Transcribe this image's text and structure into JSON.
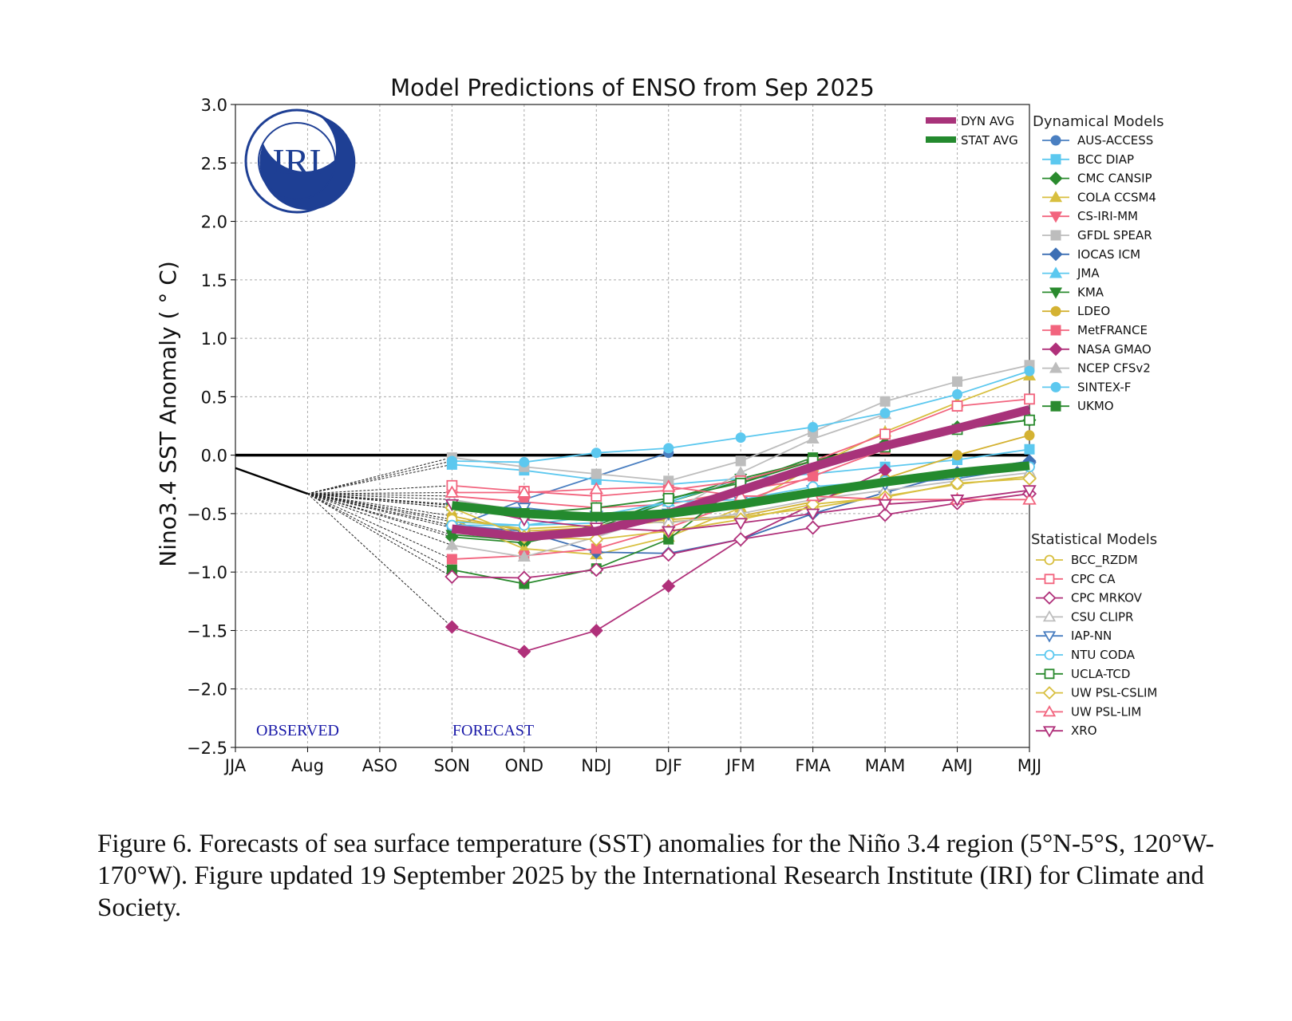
{
  "chart_data": {
    "type": "line",
    "title": "Model Predictions of ENSO from Sep 2025",
    "ylabel": "Nino3.4 SST Anomaly ( ° C)",
    "xlabel": "",
    "categories": [
      "JJA",
      "Aug",
      "ASO",
      "SON",
      "OND",
      "NDJ",
      "DJF",
      "JFM",
      "FMA",
      "MAM",
      "AMJ",
      "MJJ"
    ],
    "ylim": [
      -2.5,
      3.0
    ],
    "yticks": [
      "3.0",
      "2.5",
      "2.0",
      "1.5",
      "1.0",
      "0.5",
      "0.0",
      "−0.5",
      "−1.0",
      "−1.5",
      "−2.0",
      "−2.5"
    ],
    "grid": true,
    "annotations": {
      "observed": "OBSERVED",
      "forecast": "FORECAST"
    },
    "observed": {
      "categories": [
        "JJA",
        "Aug"
      ],
      "values": [
        -0.11,
        -0.33
      ],
      "color": "#000000"
    },
    "forecast_categories": [
      "SON",
      "OND",
      "NDJ",
      "DJF",
      "JFM",
      "FMA",
      "MAM",
      "AMJ",
      "MJJ"
    ],
    "averages": [
      {
        "name": "DYN AVG",
        "color": "#a8337a",
        "values": [
          -0.63,
          -0.7,
          -0.65,
          -0.5,
          -0.3,
          -0.1,
          0.08,
          0.23,
          0.39
        ]
      },
      {
        "name": "STAT AVG",
        "color": "#248a2e",
        "values": [
          -0.43,
          -0.5,
          -0.53,
          -0.5,
          -0.42,
          -0.32,
          -0.23,
          -0.15,
          -0.09
        ]
      }
    ],
    "legend_dynamical_title": "Dynamical Models",
    "legend_statistical_title": "Statistical Models",
    "dynamical": [
      {
        "name": "AUS-ACCESS",
        "color": "#4a7fc1",
        "marker": "circle",
        "values": [
          -0.62,
          -0.38,
          -0.18,
          0.02
        ]
      },
      {
        "name": "BCC DIAP",
        "color": "#5cc8ef",
        "marker": "square",
        "values": [
          -0.08,
          -0.13,
          -0.21,
          -0.25,
          -0.2,
          -0.16,
          -0.1,
          -0.04,
          0.05
        ]
      },
      {
        "name": "CMC CANSIP",
        "color": "#2a8a2e",
        "marker": "diamond",
        "values": [
          -0.7,
          -0.75,
          -0.62,
          -0.4,
          -0.22,
          -0.05,
          0.1,
          0.24,
          0.3
        ]
      },
      {
        "name": "COLA CCSM4",
        "color": "#d8bf3f",
        "marker": "triangle-up",
        "values": [
          -0.55,
          -0.8,
          -0.85,
          -0.7,
          -0.45,
          -0.1,
          0.2,
          0.45,
          0.68
        ]
      },
      {
        "name": "CS-IRI-MM",
        "color": "#f2647e",
        "marker": "triangle-down",
        "values": [
          -0.35,
          -0.4,
          -0.45,
          -0.42,
          -0.3,
          -0.2
        ]
      },
      {
        "name": "GFDL SPEAR",
        "color": "#bdbdbd",
        "marker": "square",
        "values": [
          -0.02,
          -0.1,
          -0.16,
          -0.22,
          -0.05,
          0.2,
          0.46,
          0.63,
          0.77
        ]
      },
      {
        "name": "IOCAS ICM",
        "color": "#3d6fb4",
        "marker": "diamond",
        "values": [
          -0.6,
          -0.65,
          -0.83,
          -0.84,
          -0.72,
          -0.5,
          -0.32,
          -0.15,
          -0.05
        ]
      },
      {
        "name": "JMA",
        "color": "#5cc8ef",
        "marker": "triangle-up",
        "values": [
          -0.57,
          -0.6,
          -0.58,
          -0.4,
          -0.2
        ]
      },
      {
        "name": "KMA",
        "color": "#2a8a2e",
        "marker": "triangle-down",
        "values": [
          -0.68,
          -0.73,
          -0.6,
          -0.38,
          -0.2,
          -0.05
        ]
      },
      {
        "name": "LDEO",
        "color": "#d4b232",
        "marker": "circle",
        "values": [
          -0.52,
          -0.65,
          -0.62,
          -0.55,
          -0.52,
          -0.4,
          -0.2,
          0.0,
          0.17
        ]
      },
      {
        "name": "MetFRANCE",
        "color": "#f2647e",
        "marker": "square",
        "values": [
          -0.89,
          -0.86,
          -0.8,
          -0.62,
          -0.4,
          -0.18,
          0.05
        ]
      },
      {
        "name": "NASA GMAO",
        "color": "#b0307a",
        "marker": "diamond",
        "values": [
          -1.47,
          -1.68,
          -1.5,
          -1.12,
          -0.72,
          -0.42,
          -0.13
        ]
      },
      {
        "name": "NCEP CFSv2",
        "color": "#bdbdbd",
        "marker": "triangle-up",
        "values": [
          -0.77,
          -0.87,
          -0.7,
          -0.5,
          -0.15,
          0.14,
          0.35
        ]
      },
      {
        "name": "SINTEX-F",
        "color": "#5cc8ef",
        "marker": "circle",
        "values": [
          -0.05,
          -0.06,
          0.02,
          0.06,
          0.15,
          0.24,
          0.36,
          0.52,
          0.72
        ]
      },
      {
        "name": "UKMO",
        "color": "#2a8a2e",
        "marker": "square",
        "values": [
          -0.98,
          -1.1,
          -0.97,
          -0.72,
          -0.24,
          -0.02
        ]
      }
    ],
    "statistical": [
      {
        "name": "BCC_RZDM",
        "color": "#d8bf3f",
        "marker": "circle",
        "values": [
          -0.55,
          -0.63,
          -0.6,
          -0.57,
          -0.53,
          -0.45,
          -0.35,
          -0.25,
          -0.18
        ]
      },
      {
        "name": "CPC CA",
        "color": "#f2647e",
        "marker": "square",
        "values": [
          -0.26,
          -0.31,
          -0.35,
          -0.3,
          -0.22,
          -0.05,
          0.18,
          0.42,
          0.48
        ]
      },
      {
        "name": "CPC MRKOV",
        "color": "#b0307a",
        "marker": "diamond",
        "values": [
          -1.04,
          -1.05,
          -0.98,
          -0.85,
          -0.72,
          -0.62,
          -0.51,
          -0.41,
          -0.33
        ]
      },
      {
        "name": "CSU CLIPR",
        "color": "#bdbdbd",
        "marker": "triangle-up",
        "values": [
          -0.38,
          -0.48,
          -0.55,
          -0.58,
          -0.5,
          -0.38,
          -0.3,
          -0.22,
          -0.15
        ]
      },
      {
        "name": "IAP-NN",
        "color": "#4a7fc1",
        "marker": "triangle-down",
        "values": [
          -0.45,
          -0.45,
          -0.52,
          -0.5,
          -0.4,
          -0.3,
          -0.25,
          -0.2,
          -0.1
        ]
      },
      {
        "name": "NTU CODA",
        "color": "#5cc8ef",
        "marker": "circle",
        "values": [
          -0.6,
          -0.6,
          -0.52,
          -0.4,
          -0.38,
          -0.27,
          -0.22,
          -0.16,
          -0.1
        ]
      },
      {
        "name": "UCLA-TCD",
        "color": "#2a8a2e",
        "marker": "square",
        "values": [
          -0.43,
          -0.5,
          -0.45,
          -0.37,
          -0.24,
          -0.05,
          0.07,
          0.22,
          0.3
        ]
      },
      {
        "name": "UW PSL-CSLIM",
        "color": "#d8bf3f",
        "marker": "diamond",
        "values": [
          -0.45,
          -0.7,
          -0.72,
          -0.65,
          -0.55,
          -0.42,
          -0.36,
          -0.24,
          -0.2
        ]
      },
      {
        "name": "UW PSL-LIM",
        "color": "#f2647e",
        "marker": "triangle-up",
        "values": [
          -0.32,
          -0.32,
          -0.29,
          -0.27,
          -0.35,
          -0.35,
          -0.38,
          -0.38,
          -0.38
        ]
      },
      {
        "name": "XRO",
        "color": "#b0307a",
        "marker": "triangle-down",
        "values": [
          -0.42,
          -0.55,
          -0.62,
          -0.65,
          -0.58,
          -0.5,
          -0.42,
          -0.38,
          -0.3
        ]
      }
    ],
    "logo_text": "IRI",
    "logo_color": "#1e3f94",
    "annotation_color": "#1a1aa8"
  },
  "caption": "Figure 6. Forecasts of sea surface temperature (SST) anomalies for the Niño 3.4 region (5°N-5°S, 120°W-170°W). Figure updated 19 September 2025 by the International Research Institute (IRI) for Climate and Society."
}
